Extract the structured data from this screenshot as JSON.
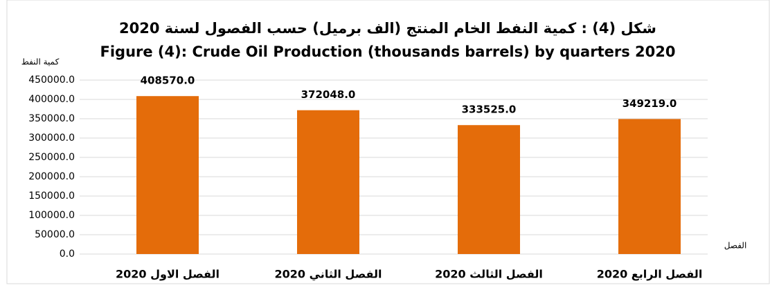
{
  "chart_data": {
    "type": "bar",
    "title": "شكل (4) : كمية النفط الخام المنتج (الف برميل) حسب الفصول لسنة 2020",
    "subtitle": "Figure (4): Crude Oil Production (thousands barrels) by quarters 2020",
    "y_label": "كمية النفط",
    "x_label": "الفصل",
    "categories": [
      "الفصل الاول 2020",
      "الفصل الثاني 2020",
      "الفصل الثالث 2020",
      "الفصل الرابع 2020"
    ],
    "values": [
      408570,
      372048,
      333525,
      349219
    ],
    "value_labels": [
      "408570.0",
      "372048.0",
      "333525.0",
      "349219.0"
    ],
    "color": "#e46c0a",
    "ylim": [
      0,
      450000
    ],
    "yticks": [
      {
        "value": 0,
        "label": "0.0"
      },
      {
        "value": 50000,
        "label": "50000.0"
      },
      {
        "value": 100000,
        "label": "100000.0"
      },
      {
        "value": 150000,
        "label": "150000.0"
      },
      {
        "value": 200000,
        "label": "200000.0"
      },
      {
        "value": 250000,
        "label": "250000.0"
      },
      {
        "value": 300000,
        "label": "300000.0"
      },
      {
        "value": 350000,
        "label": "350000.0"
      },
      {
        "value": 400000,
        "label": "400000.0"
      },
      {
        "value": 450000,
        "label": "450000.0"
      }
    ],
    "grid": true
  }
}
